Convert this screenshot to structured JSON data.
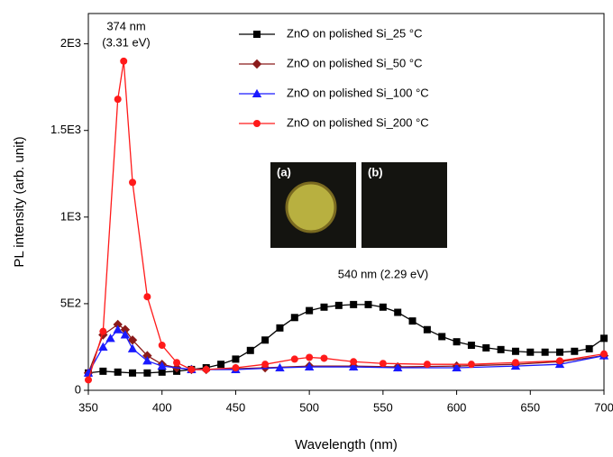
{
  "chart_data": {
    "type": "line",
    "x_label": "Wavelength (nm)",
    "y_label": "PL intensity (arb. unit)",
    "xlim": [
      350,
      700
    ],
    "xticks": [
      350,
      400,
      450,
      500,
      550,
      600,
      650,
      700
    ],
    "ylim": [
      0,
      2175
    ],
    "yticks": [
      0,
      {
        "value": 500,
        "label": "5E2"
      },
      {
        "value": 1000,
        "label": "1E3"
      },
      {
        "value": 1500,
        "label": "1.5E3"
      },
      {
        "value": 2000,
        "label": "2E3"
      }
    ],
    "annotations": [
      "374 nm",
      "(3.31 eV)",
      "540 nm (2.29 eV)"
    ],
    "inset_labels": [
      "(a)",
      "(b)"
    ],
    "series": [
      {
        "name": "ZnO on polished Si_25 °C",
        "color": "#000000",
        "marker": "square",
        "x": [
          350,
          360,
          370,
          380,
          390,
          400,
          410,
          420,
          430,
          440,
          450,
          460,
          470,
          480,
          490,
          500,
          510,
          520,
          530,
          540,
          550,
          560,
          570,
          580,
          590,
          600,
          610,
          620,
          630,
          640,
          650,
          660,
          670,
          680,
          690,
          700
        ],
        "values": [
          100,
          110,
          105,
          100,
          100,
          105,
          110,
          120,
          130,
          150,
          180,
          230,
          290,
          360,
          420,
          460,
          480,
          490,
          495,
          495,
          480,
          450,
          400,
          350,
          310,
          280,
          260,
          245,
          235,
          225,
          220,
          220,
          220,
          225,
          240,
          300
        ]
      },
      {
        "name": "ZnO on polished Si_50 °C",
        "color": "#8b1a1a",
        "marker": "diamond",
        "x": [
          350,
          360,
          370,
          375,
          380,
          390,
          400,
          410,
          420,
          430,
          450,
          470,
          500,
          530,
          560,
          600,
          640,
          670,
          700
        ],
        "values": [
          100,
          320,
          380,
          350,
          290,
          200,
          150,
          130,
          120,
          120,
          125,
          130,
          140,
          140,
          135,
          140,
          150,
          165,
          200
        ]
      },
      {
        "name": "ZnO on polished Si_100 °C",
        "color": "#1a1aff",
        "marker": "triangle",
        "x": [
          350,
          360,
          365,
          370,
          375,
          380,
          390,
          400,
          420,
          450,
          480,
          500,
          530,
          560,
          600,
          640,
          670,
          700
        ],
        "values": [
          100,
          250,
          300,
          350,
          320,
          240,
          170,
          140,
          120,
          120,
          130,
          135,
          135,
          130,
          130,
          140,
          150,
          200
        ]
      },
      {
        "name": "ZnO on polished Si_200 °C",
        "color": "#ff1a1a",
        "marker": "circle",
        "x": [
          350,
          360,
          370,
          374,
          380,
          390,
          400,
          410,
          420,
          430,
          450,
          470,
          490,
          500,
          510,
          530,
          550,
          580,
          610,
          640,
          670,
          700
        ],
        "values": [
          60,
          340,
          1680,
          1900,
          1200,
          540,
          260,
          160,
          120,
          120,
          130,
          150,
          180,
          190,
          185,
          165,
          155,
          150,
          150,
          160,
          170,
          210
        ]
      }
    ]
  }
}
